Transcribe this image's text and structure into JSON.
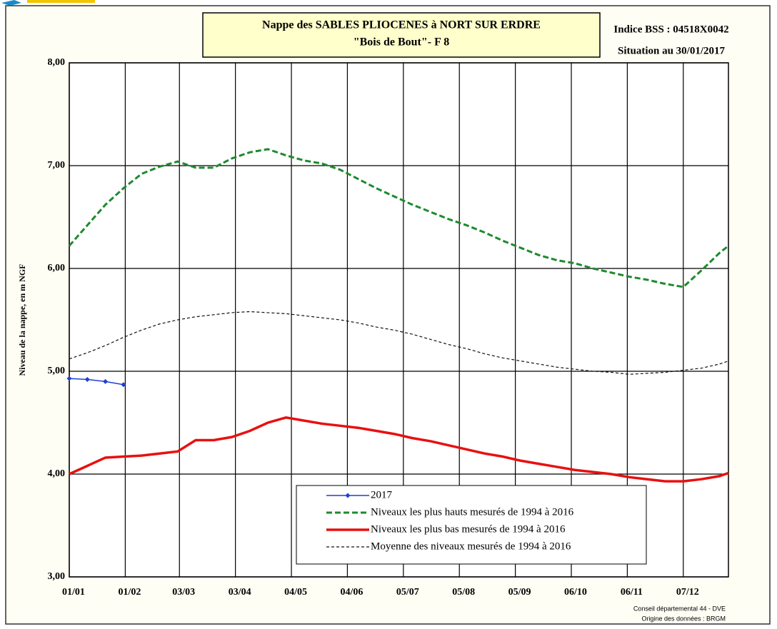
{
  "chart_data": {
    "type": "line",
    "title": "Nappe des SABLES PLIOCENES à NORT SUR ERDRE",
    "subtitle": "\"Bois de Bout\"-  F 8",
    "annotations": [
      "Indice BSS : 04518X0042",
      "Situation au 30/01/2017"
    ],
    "footer": [
      "Conseil départemental 44 - DVE",
      "Origine des données : BRGM"
    ],
    "y_label": "Niveau de la nappe, en m NGF",
    "x": [
      0,
      10,
      20,
      30,
      40,
      50,
      60,
      70,
      80,
      90,
      100,
      110,
      120,
      130,
      140,
      150,
      160,
      170,
      180,
      190,
      200,
      210,
      220,
      230,
      240,
      250,
      260,
      270,
      280,
      290,
      300,
      310,
      320,
      330,
      340,
      350,
      360,
      365
    ],
    "xlim": [
      0,
      365
    ],
    "xticks": [
      {
        "value": 0,
        "label": "01/01"
      },
      {
        "value": 31,
        "label": "01/02"
      },
      {
        "value": 61,
        "label": "03/03"
      },
      {
        "value": 92,
        "label": "03/04"
      },
      {
        "value": 123,
        "label": "04/05"
      },
      {
        "value": 154,
        "label": "04/06"
      },
      {
        "value": 185,
        "label": "05/07"
      },
      {
        "value": 216,
        "label": "05/08"
      },
      {
        "value": 247,
        "label": "05/09"
      },
      {
        "value": 278,
        "label": "06/10"
      },
      {
        "value": 309,
        "label": "06/11"
      },
      {
        "value": 340,
        "label": "07/12"
      }
    ],
    "ylim": [
      3,
      8
    ],
    "yticks": [
      {
        "value": 3,
        "label": "3,00"
      },
      {
        "value": 4,
        "label": "4,00"
      },
      {
        "value": 5,
        "label": "5,00"
      },
      {
        "value": 6,
        "label": "6,00"
      },
      {
        "value": 7,
        "label": "7,00"
      },
      {
        "value": 8,
        "label": "8,00"
      }
    ],
    "grid": true,
    "series": [
      {
        "name": "2017",
        "color": "#1f3fd6",
        "line_style": "solid",
        "markers": true,
        "values": [
          4.93,
          4.92,
          4.9,
          4.87,
          null,
          null,
          null,
          null,
          null,
          null,
          null,
          null,
          null,
          null,
          null,
          null,
          null,
          null,
          null,
          null,
          null,
          null,
          null,
          null,
          null,
          null,
          null,
          null,
          null,
          null,
          null,
          null,
          null,
          null,
          null,
          null,
          null,
          null
        ]
      },
      {
        "name": "Niveaux les plus hauts mesurés de 1994 à 2016",
        "color": "#1e8a2e",
        "line_style": "dashed-thick",
        "values": [
          6.22,
          6.42,
          6.62,
          6.78,
          6.92,
          6.99,
          7.04,
          6.98,
          6.98,
          7.07,
          7.13,
          7.16,
          7.1,
          7.05,
          7.02,
          6.96,
          6.87,
          6.78,
          6.7,
          6.62,
          6.55,
          6.48,
          6.42,
          6.35,
          6.27,
          6.2,
          6.13,
          6.08,
          6.05,
          6.0,
          5.96,
          5.92,
          5.89,
          5.85,
          5.82,
          5.98,
          6.15,
          6.22
        ]
      },
      {
        "name": "Niveaux les plus bas mesurés de 1994 à 2016",
        "color": "#e81010",
        "line_style": "solid-thick",
        "values": [
          4.0,
          4.08,
          4.16,
          4.17,
          4.18,
          4.2,
          4.22,
          4.33,
          4.33,
          4.36,
          4.42,
          4.5,
          4.55,
          4.52,
          4.49,
          4.47,
          4.45,
          4.42,
          4.39,
          4.35,
          4.32,
          4.28,
          4.24,
          4.2,
          4.17,
          4.13,
          4.1,
          4.07,
          4.04,
          4.02,
          4.0,
          3.97,
          3.95,
          3.93,
          3.93,
          3.95,
          3.98,
          4.01
        ]
      },
      {
        "name": "Moyenne des niveaux mesurés de 1994 à 2016",
        "color": "#111111",
        "line_style": "dashed-thin",
        "values": [
          5.12,
          5.18,
          5.25,
          5.33,
          5.4,
          5.46,
          5.5,
          5.53,
          5.55,
          5.57,
          5.58,
          5.57,
          5.56,
          5.54,
          5.52,
          5.5,
          5.47,
          5.43,
          5.4,
          5.36,
          5.31,
          5.26,
          5.22,
          5.17,
          5.13,
          5.1,
          5.07,
          5.04,
          5.02,
          5.0,
          4.99,
          4.97,
          4.98,
          4.99,
          5.01,
          5.03,
          5.07,
          5.1
        ]
      }
    ]
  }
}
